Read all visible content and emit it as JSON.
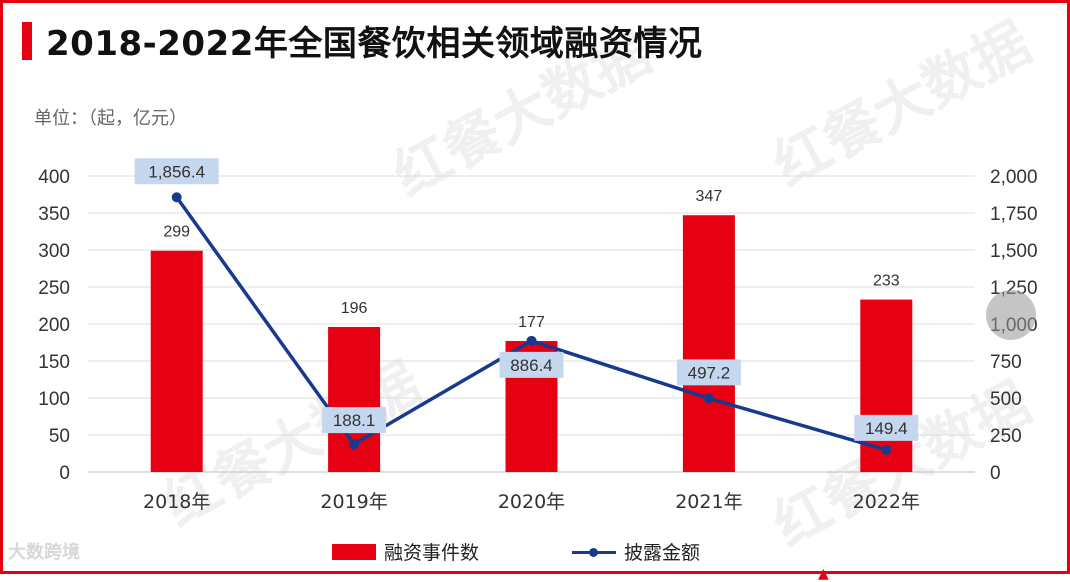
{
  "header": {
    "title": "2018-2022年全国餐饮相关领域融资情况",
    "unit_label": "单位：（起，亿元）"
  },
  "watermarks": {
    "main": "红餐大数据",
    "corner": "大数跨境"
  },
  "colors": {
    "brand_red": "#e60012",
    "line_blue": "#173a8f",
    "label_box": "#c5d6ef"
  },
  "chart_data": {
    "type": "bar",
    "categories": [
      "2018年",
      "2019年",
      "2020年",
      "2021年",
      "2022年"
    ],
    "series": [
      {
        "name": "融资事件数",
        "type": "bar",
        "axis": "left",
        "values": [
          299,
          196,
          177,
          347,
          233
        ],
        "labels": [
          "299",
          "196",
          "177",
          "347",
          "233"
        ]
      },
      {
        "name": "披露金额",
        "type": "line",
        "axis": "right",
        "values": [
          1856.4,
          188.1,
          886.4,
          497.2,
          149.4
        ],
        "labels": [
          "1,856.4",
          "188.1",
          "886.4",
          "497.2",
          "149.4"
        ]
      }
    ],
    "left_axis": {
      "min": 0,
      "max": 400,
      "ticks": [
        "0",
        "50",
        "100",
        "150",
        "200",
        "250",
        "300",
        "350",
        "400"
      ]
    },
    "right_axis": {
      "min": 0,
      "max": 2000,
      "ticks": [
        "0",
        "250",
        "500",
        "750",
        "1,000",
        "1,250",
        "1,500",
        "1,750",
        "2,000"
      ]
    },
    "grid": true,
    "legend_position": "bottom"
  }
}
